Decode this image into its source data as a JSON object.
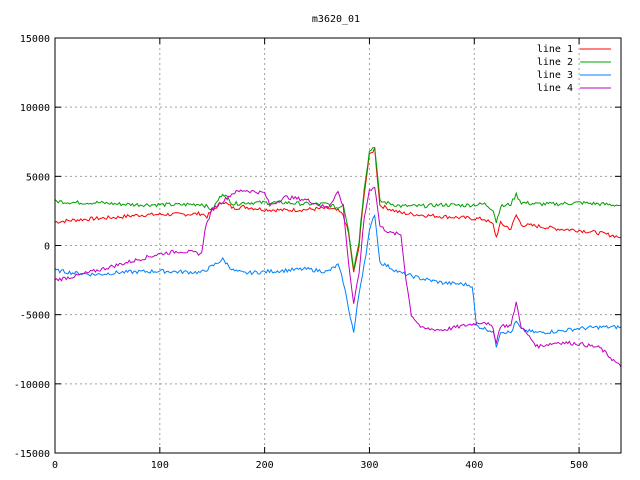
{
  "chart_data": {
    "type": "line",
    "title": "m3620_01",
    "xlabel": "",
    "ylabel": "",
    "xlim": [
      0,
      540
    ],
    "ylim": [
      -15000,
      15000
    ],
    "xticks": [
      0,
      100,
      200,
      300,
      400,
      500
    ],
    "yticks": [
      -15000,
      -10000,
      -5000,
      0,
      5000,
      10000,
      15000
    ],
    "grid": true,
    "legend_position": "top-right",
    "series": [
      {
        "name": "line 1",
        "color": "#ff0000",
        "points": [
          [
            0,
            1700
          ],
          [
            20,
            1850
          ],
          [
            40,
            1950
          ],
          [
            60,
            2050
          ],
          [
            80,
            2200
          ],
          [
            100,
            2250
          ],
          [
            120,
            2250
          ],
          [
            140,
            2300
          ],
          [
            145,
            2100
          ],
          [
            150,
            2500
          ],
          [
            160,
            3200
          ],
          [
            170,
            2700
          ],
          [
            180,
            2800
          ],
          [
            200,
            2600
          ],
          [
            220,
            2550
          ],
          [
            240,
            2600
          ],
          [
            260,
            2700
          ],
          [
            270,
            2500
          ],
          [
            275,
            2200
          ],
          [
            280,
            900
          ],
          [
            285,
            -2000
          ],
          [
            290,
            -100
          ],
          [
            295,
            3800
          ],
          [
            300,
            6500
          ],
          [
            305,
            7000
          ],
          [
            310,
            2900
          ],
          [
            330,
            2350
          ],
          [
            350,
            2200
          ],
          [
            370,
            2100
          ],
          [
            390,
            2000
          ],
          [
            410,
            1900
          ],
          [
            418,
            1500
          ],
          [
            421,
            600
          ],
          [
            425,
            1600
          ],
          [
            435,
            1200
          ],
          [
            440,
            2200
          ],
          [
            445,
            1500
          ],
          [
            460,
            1400
          ],
          [
            480,
            1200
          ],
          [
            500,
            1100
          ],
          [
            520,
            900
          ],
          [
            540,
            600
          ]
        ]
      },
      {
        "name": "line 2",
        "color": "#00a000",
        "points": [
          [
            0,
            3200
          ],
          [
            20,
            3100
          ],
          [
            40,
            3100
          ],
          [
            60,
            3000
          ],
          [
            80,
            2950
          ],
          [
            100,
            2950
          ],
          [
            120,
            2950
          ],
          [
            140,
            3000
          ],
          [
            150,
            2600
          ],
          [
            160,
            3800
          ],
          [
            170,
            3000
          ],
          [
            180,
            3100
          ],
          [
            200,
            3100
          ],
          [
            220,
            3100
          ],
          [
            240,
            3000
          ],
          [
            260,
            3000
          ],
          [
            270,
            2700
          ],
          [
            275,
            3000
          ],
          [
            280,
            1200
          ],
          [
            285,
            -1700
          ],
          [
            290,
            300
          ],
          [
            295,
            4200
          ],
          [
            300,
            6800
          ],
          [
            305,
            7200
          ],
          [
            310,
            3200
          ],
          [
            330,
            2850
          ],
          [
            350,
            2850
          ],
          [
            370,
            2950
          ],
          [
            390,
            2900
          ],
          [
            410,
            3000
          ],
          [
            418,
            2600
          ],
          [
            421,
            1700
          ],
          [
            425,
            2800
          ],
          [
            435,
            3000
          ],
          [
            440,
            3700
          ],
          [
            445,
            3100
          ],
          [
            460,
            3000
          ],
          [
            480,
            3000
          ],
          [
            500,
            3100
          ],
          [
            520,
            3000
          ],
          [
            540,
            2900
          ]
        ]
      },
      {
        "name": "line 3",
        "color": "#0080ff",
        "points": [
          [
            0,
            -1800
          ],
          [
            20,
            -2000
          ],
          [
            40,
            -2100
          ],
          [
            60,
            -1950
          ],
          [
            80,
            -1900
          ],
          [
            100,
            -1850
          ],
          [
            120,
            -1900
          ],
          [
            140,
            -1950
          ],
          [
            150,
            -1500
          ],
          [
            160,
            -1000
          ],
          [
            170,
            -1800
          ],
          [
            180,
            -2000
          ],
          [
            200,
            -1900
          ],
          [
            220,
            -1800
          ],
          [
            240,
            -1700
          ],
          [
            260,
            -1900
          ],
          [
            270,
            -1400
          ],
          [
            275,
            -2600
          ],
          [
            280,
            -4500
          ],
          [
            285,
            -6300
          ],
          [
            290,
            -3500
          ],
          [
            295,
            -1300
          ],
          [
            300,
            1000
          ],
          [
            305,
            2300
          ],
          [
            310,
            -1200
          ],
          [
            330,
            -2000
          ],
          [
            350,
            -2400
          ],
          [
            370,
            -2700
          ],
          [
            390,
            -2800
          ],
          [
            398,
            -2900
          ],
          [
            402,
            -5800
          ],
          [
            410,
            -6000
          ],
          [
            418,
            -6200
          ],
          [
            421,
            -7300
          ],
          [
            425,
            -6200
          ],
          [
            435,
            -6300
          ],
          [
            440,
            -5500
          ],
          [
            445,
            -6100
          ],
          [
            460,
            -6300
          ],
          [
            480,
            -6200
          ],
          [
            500,
            -6000
          ],
          [
            520,
            -5900
          ],
          [
            540,
            -5900
          ]
        ]
      },
      {
        "name": "line 4",
        "color": "#c000c0",
        "points": [
          [
            0,
            -2500
          ],
          [
            20,
            -2200
          ],
          [
            40,
            -1800
          ],
          [
            60,
            -1400
          ],
          [
            80,
            -1000
          ],
          [
            100,
            -600
          ],
          [
            120,
            -400
          ],
          [
            140,
            -600
          ],
          [
            143,
            1200
          ],
          [
            150,
            2600
          ],
          [
            160,
            3200
          ],
          [
            170,
            3800
          ],
          [
            180,
            4000
          ],
          [
            200,
            3800
          ],
          [
            205,
            2900
          ],
          [
            220,
            3500
          ],
          [
            240,
            3300
          ],
          [
            260,
            2700
          ],
          [
            270,
            3900
          ],
          [
            275,
            2800
          ],
          [
            280,
            -1200
          ],
          [
            285,
            -4300
          ],
          [
            290,
            -2000
          ],
          [
            295,
            2000
          ],
          [
            300,
            4000
          ],
          [
            305,
            4300
          ],
          [
            310,
            1400
          ],
          [
            320,
            900
          ],
          [
            330,
            800
          ],
          [
            335,
            -2500
          ],
          [
            340,
            -5000
          ],
          [
            350,
            -6000
          ],
          [
            370,
            -6100
          ],
          [
            390,
            -5800
          ],
          [
            410,
            -5500
          ],
          [
            418,
            -6000
          ],
          [
            421,
            -7000
          ],
          [
            425,
            -5800
          ],
          [
            435,
            -5800
          ],
          [
            440,
            -4100
          ],
          [
            445,
            -5900
          ],
          [
            460,
            -7300
          ],
          [
            480,
            -7000
          ],
          [
            500,
            -7100
          ],
          [
            520,
            -7400
          ],
          [
            530,
            -8100
          ],
          [
            540,
            -8800
          ]
        ]
      }
    ]
  }
}
